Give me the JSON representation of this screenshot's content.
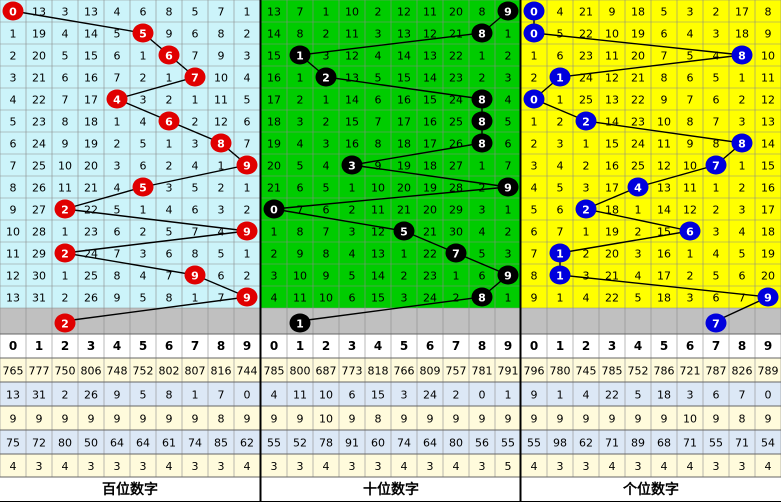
{
  "columns": [
    0,
    1,
    2,
    3,
    4,
    5,
    6,
    7,
    8,
    9
  ],
  "sections": [
    {
      "label": "百位数字",
      "rows": [
        [
          0,
          13,
          3,
          13,
          4,
          6,
          8,
          5,
          7,
          1
        ],
        [
          1,
          19,
          4,
          14,
          5,
          5,
          9,
          6,
          8,
          2
        ],
        [
          2,
          20,
          5,
          15,
          6,
          1,
          6,
          7,
          9,
          3
        ],
        [
          3,
          21,
          6,
          16,
          7,
          2,
          1,
          7,
          10,
          4
        ],
        [
          4,
          22,
          7,
          17,
          4,
          3,
          2,
          1,
          11,
          5
        ],
        [
          5,
          23,
          8,
          18,
          1,
          4,
          6,
          2,
          12,
          6
        ],
        [
          6,
          24,
          9,
          19,
          2,
          5,
          1,
          3,
          8,
          7
        ],
        [
          7,
          25,
          10,
          20,
          3,
          6,
          2,
          4,
          1,
          9
        ],
        [
          8,
          26,
          11,
          21,
          4,
          5,
          3,
          5,
          2,
          1
        ],
        [
          9,
          27,
          2,
          22,
          5,
          1,
          4,
          6,
          3,
          2
        ],
        [
          10,
          28,
          1,
          23,
          6,
          2,
          5,
          7,
          4,
          9
        ],
        [
          11,
          29,
          2,
          24,
          7,
          3,
          6,
          8,
          5,
          1
        ],
        [
          12,
          30,
          1,
          25,
          8,
          4,
          7,
          9,
          6,
          2
        ],
        [
          13,
          31,
          2,
          26,
          9,
          5,
          8,
          1,
          7,
          9
        ]
      ],
      "hits": [
        0,
        5,
        6,
        7,
        4,
        6,
        8,
        9,
        5,
        2,
        9,
        2,
        7,
        9
      ],
      "forecast": 2,
      "stats": [
        [
          765,
          777,
          750,
          806,
          748,
          752,
          802,
          807,
          816,
          744
        ],
        [
          13,
          31,
          2,
          26,
          9,
          5,
          8,
          1,
          7,
          0
        ],
        [
          9,
          9,
          9,
          9,
          9,
          9,
          9,
          9,
          8,
          9
        ],
        [
          75,
          72,
          80,
          50,
          64,
          64,
          61,
          74,
          85,
          62
        ],
        [
          4,
          3,
          4,
          3,
          3,
          3,
          4,
          3,
          3,
          4
        ]
      ]
    },
    {
      "label": "十位数字",
      "rows": [
        [
          13,
          7,
          1,
          10,
          2,
          12,
          11,
          20,
          8,
          9
        ],
        [
          14,
          8,
          2,
          11,
          3,
          13,
          12,
          21,
          8,
          1
        ],
        [
          15,
          1,
          3,
          12,
          4,
          14,
          13,
          22,
          1,
          2
        ],
        [
          16,
          1,
          2,
          13,
          5,
          15,
          14,
          23,
          2,
          3
        ],
        [
          17,
          2,
          1,
          14,
          6,
          16,
          15,
          24,
          8,
          4
        ],
        [
          18,
          3,
          2,
          15,
          7,
          17,
          16,
          25,
          8,
          5
        ],
        [
          19,
          4,
          3,
          16,
          8,
          18,
          17,
          26,
          8,
          6
        ],
        [
          20,
          5,
          4,
          3,
          9,
          19,
          18,
          27,
          1,
          7
        ],
        [
          21,
          6,
          5,
          1,
          10,
          20,
          19,
          28,
          2,
          9
        ],
        [
          0,
          7,
          6,
          2,
          11,
          21,
          20,
          29,
          3,
          1
        ],
        [
          1,
          8,
          7,
          3,
          12,
          5,
          21,
          30,
          4,
          2
        ],
        [
          2,
          9,
          8,
          4,
          13,
          1,
          22,
          7,
          5,
          3
        ],
        [
          3,
          10,
          9,
          5,
          14,
          2,
          23,
          1,
          6,
          9
        ],
        [
          4,
          11,
          10,
          6,
          15,
          3,
          24,
          2,
          8,
          1
        ]
      ],
      "hits": [
        9,
        8,
        1,
        2,
        8,
        8,
        8,
        3,
        9,
        0,
        5,
        7,
        9,
        8
      ],
      "forecast": 1,
      "stats": [
        [
          785,
          800,
          687,
          773,
          818,
          766,
          809,
          757,
          781,
          791
        ],
        [
          4,
          11,
          10,
          6,
          15,
          3,
          24,
          2,
          0,
          1
        ],
        [
          9,
          9,
          10,
          9,
          8,
          9,
          9,
          9,
          9,
          9
        ],
        [
          55,
          52,
          78,
          91,
          60,
          74,
          64,
          80,
          56,
          55
        ],
        [
          3,
          3,
          4,
          3,
          3,
          4,
          3,
          4,
          3,
          5
        ]
      ]
    },
    {
      "label": "个位数字",
      "rows": [
        [
          0,
          4,
          21,
          9,
          18,
          5,
          3,
          2,
          17,
          8
        ],
        [
          0,
          5,
          22,
          10,
          19,
          6,
          4,
          3,
          18,
          9
        ],
        [
          1,
          6,
          23,
          11,
          20,
          7,
          5,
          4,
          8,
          10
        ],
        [
          2,
          1,
          24,
          12,
          21,
          8,
          6,
          5,
          1,
          11
        ],
        [
          0,
          1,
          25,
          13,
          22,
          9,
          7,
          6,
          2,
          12
        ],
        [
          1,
          2,
          2,
          14,
          23,
          10,
          8,
          7,
          3,
          13
        ],
        [
          2,
          3,
          1,
          15,
          24,
          11,
          9,
          8,
          8,
          14
        ],
        [
          3,
          4,
          2,
          16,
          25,
          12,
          10,
          7,
          1,
          15
        ],
        [
          4,
          5,
          3,
          17,
          4,
          13,
          11,
          1,
          2,
          16
        ],
        [
          5,
          6,
          2,
          18,
          1,
          14,
          12,
          2,
          3,
          17
        ],
        [
          6,
          7,
          1,
          19,
          2,
          15,
          6,
          3,
          4,
          18
        ],
        [
          7,
          1,
          2,
          20,
          3,
          16,
          1,
          4,
          5,
          19
        ],
        [
          8,
          1,
          3,
          21,
          4,
          17,
          2,
          5,
          6,
          20
        ],
        [
          9,
          1,
          4,
          22,
          5,
          18,
          3,
          6,
          7,
          9
        ]
      ],
      "hits": [
        0,
        0,
        8,
        1,
        0,
        2,
        8,
        7,
        4,
        2,
        6,
        1,
        1,
        9
      ],
      "forecast": 7,
      "stats": [
        [
          796,
          780,
          745,
          785,
          752,
          786,
          721,
          787,
          826,
          789
        ],
        [
          9,
          1,
          4,
          22,
          5,
          18,
          3,
          6,
          7,
          0
        ],
        [
          9,
          9,
          9,
          9,
          9,
          9,
          10,
          9,
          8,
          9
        ],
        [
          55,
          98,
          62,
          71,
          89,
          68,
          71,
          55,
          71,
          54
        ],
        [
          4,
          3,
          3,
          4,
          3,
          4,
          4,
          3,
          3,
          4
        ]
      ]
    }
  ]
}
